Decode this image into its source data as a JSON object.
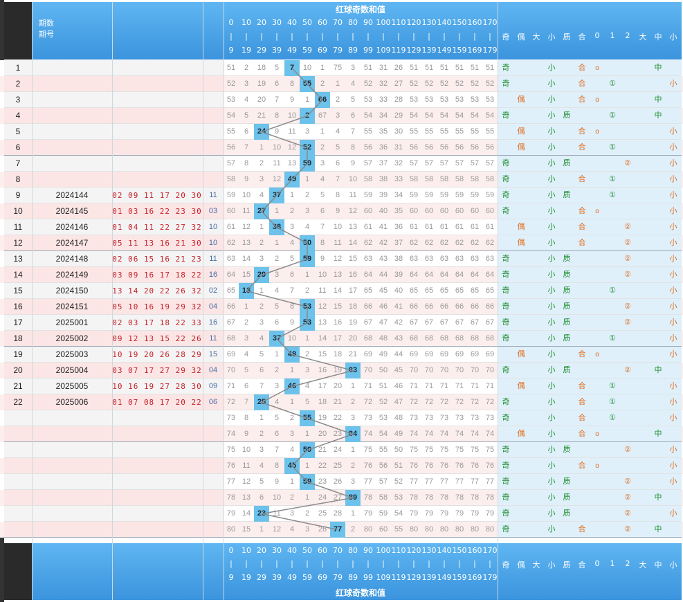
{
  "header": {
    "period_label": "期数",
    "issue_label": "期号",
    "section_title": "红球奇数和值",
    "range_tops": [
      "0",
      "10",
      "20",
      "30",
      "40",
      "50",
      "60",
      "70",
      "80",
      "90",
      "100",
      "110",
      "120",
      "130",
      "140",
      "150",
      "160",
      "170"
    ],
    "range_bottoms": [
      "9",
      "19",
      "29",
      "39",
      "49",
      "59",
      "69",
      "79",
      "89",
      "99",
      "109",
      "119",
      "129",
      "139",
      "149",
      "159",
      "169",
      "179"
    ],
    "range_sep": "|",
    "stat_labels": [
      "奇",
      "偶",
      "大",
      "小",
      "质",
      "合",
      "0",
      "1",
      "2",
      "大",
      "中",
      "小"
    ]
  },
  "footer": {
    "section_title": "红球奇数和值"
  },
  "chart_data": {
    "type": "table",
    "hit_columns": [
      4,
      5,
      6,
      5,
      2,
      5,
      5,
      4,
      3,
      2,
      3,
      5,
      5,
      2,
      1,
      5,
      5,
      3,
      4,
      8,
      4,
      2,
      5,
      8,
      5,
      4,
      5,
      8,
      2,
      7
    ],
    "base_columns": [
      [
        51,
        2,
        18,
        5,
        7,
        10,
        1,
        75,
        3,
        51,
        31,
        26,
        51,
        51,
        51,
        51,
        51
      ],
      [
        52,
        3,
        19,
        6,
        8,
        55,
        2,
        1,
        4,
        52,
        32,
        27,
        52,
        52,
        52,
        52,
        52
      ],
      [
        53,
        4,
        20,
        7,
        9,
        1,
        66,
        2,
        5,
        53,
        33,
        28,
        53,
        53,
        53,
        53,
        53
      ],
      [
        54,
        5,
        21,
        8,
        10,
        2,
        67,
        3,
        6,
        54,
        34,
        29,
        54,
        54,
        54,
        54,
        54
      ],
      [
        55,
        6,
        24,
        9,
        11,
        3,
        1,
        4,
        7,
        55,
        35,
        30,
        55,
        55,
        55,
        55,
        55
      ],
      [
        56,
        7,
        1,
        10,
        12,
        52,
        2,
        5,
        8,
        56,
        36,
        31,
        56,
        56,
        56,
        56,
        56
      ],
      [
        57,
        8,
        2,
        11,
        13,
        59,
        3,
        6,
        9,
        57,
        37,
        32,
        57,
        57,
        57,
        57,
        57
      ],
      [
        58,
        9,
        3,
        12,
        49,
        1,
        4,
        7,
        10,
        58,
        38,
        33,
        58,
        58,
        58,
        58,
        58
      ],
      [
        59,
        10,
        4,
        37,
        1,
        2,
        5,
        8,
        11,
        59,
        39,
        34,
        59,
        59,
        59,
        59,
        59
      ],
      [
        60,
        11,
        27,
        1,
        2,
        3,
        6,
        9,
        12,
        60,
        40,
        35,
        60,
        60,
        60,
        60,
        60
      ],
      [
        61,
        12,
        1,
        38,
        3,
        4,
        7,
        10,
        13,
        61,
        41,
        36,
        61,
        61,
        61,
        61,
        61
      ],
      [
        62,
        13,
        2,
        1,
        4,
        50,
        8,
        11,
        14,
        62,
        42,
        37,
        62,
        62,
        62,
        62,
        62
      ],
      [
        63,
        14,
        3,
        2,
        5,
        59,
        9,
        12,
        15,
        63,
        43,
        38,
        63,
        63,
        63,
        63,
        63
      ],
      [
        64,
        15,
        29,
        3,
        6,
        1,
        10,
        13,
        16,
        64,
        44,
        39,
        64,
        64,
        64,
        64,
        64
      ],
      [
        65,
        13,
        1,
        4,
        7,
        2,
        11,
        14,
        17,
        65,
        45,
        40,
        65,
        65,
        65,
        65,
        65
      ],
      [
        66,
        1,
        2,
        5,
        8,
        53,
        12,
        15,
        18,
        66,
        46,
        41,
        66,
        66,
        66,
        66,
        66
      ],
      [
        67,
        2,
        3,
        6,
        9,
        53,
        13,
        16,
        19,
        67,
        47,
        42,
        67,
        67,
        67,
        67,
        67
      ],
      [
        68,
        3,
        4,
        37,
        10,
        1,
        14,
        17,
        20,
        68,
        48,
        43,
        68,
        68,
        68,
        68,
        68
      ],
      [
        69,
        4,
        5,
        1,
        48,
        2,
        15,
        18,
        21,
        69,
        49,
        44,
        69,
        69,
        69,
        69,
        69
      ],
      [
        70,
        5,
        6,
        2,
        1,
        3,
        16,
        19,
        83,
        70,
        50,
        45,
        70,
        70,
        70,
        70,
        70
      ],
      [
        71,
        6,
        7,
        3,
        46,
        4,
        17,
        20,
        1,
        71,
        51,
        46,
        71,
        71,
        71,
        71,
        71
      ],
      [
        72,
        7,
        25,
        4,
        1,
        5,
        18,
        21,
        2,
        72,
        52,
        47,
        72,
        72,
        72,
        72,
        72
      ],
      [
        73,
        8,
        1,
        5,
        2,
        55,
        19,
        22,
        3,
        73,
        53,
        48,
        73,
        73,
        73,
        73,
        73
      ],
      [
        74,
        9,
        2,
        6,
        3,
        1,
        20,
        23,
        84,
        74,
        54,
        49,
        74,
        74,
        74,
        74,
        74
      ],
      [
        75,
        10,
        3,
        7,
        4,
        59,
        21,
        24,
        1,
        75,
        55,
        50,
        75,
        75,
        75,
        75,
        75
      ],
      [
        76,
        11,
        4,
        8,
        45,
        1,
        22,
        25,
        2,
        76,
        56,
        51,
        76,
        76,
        76,
        76,
        76
      ],
      [
        77,
        12,
        5,
        9,
        1,
        59,
        23,
        26,
        3,
        77,
        57,
        52,
        77,
        77,
        77,
        77,
        77
      ],
      [
        78,
        13,
        6,
        10,
        2,
        1,
        24,
        27,
        89,
        78,
        58,
        53,
        78,
        78,
        78,
        78,
        78
      ],
      [
        79,
        14,
        23,
        11,
        3,
        2,
        25,
        28,
        1,
        79,
        59,
        54,
        79,
        79,
        79,
        79,
        79
      ],
      [
        80,
        15,
        1,
        12,
        4,
        3,
        26,
        77,
        2,
        80,
        60,
        55,
        80,
        80,
        80,
        80,
        80
      ]
    ]
  },
  "rows": [
    {
      "idx": "1",
      "issue": "",
      "balls": "",
      "sum": "",
      "odd": "奇",
      "even": "",
      "small": "小",
      "prime": "",
      "comp": "合",
      "r0": "o",
      "r1": "",
      "r2": "",
      "mid": "中",
      "sm": ""
    },
    {
      "idx": "2",
      "issue": "",
      "balls": "",
      "sum": "",
      "odd": "奇",
      "even": "",
      "small": "小",
      "prime": "",
      "comp": "合",
      "r0": "",
      "r1": "①",
      "r2": "",
      "mid": "",
      "sm": "小"
    },
    {
      "idx": "3",
      "issue": "",
      "balls": "",
      "sum": "",
      "odd": "",
      "even": "偶",
      "small": "小",
      "prime": "",
      "comp": "合",
      "r0": "o",
      "r1": "",
      "r2": "",
      "mid": "中",
      "sm": ""
    },
    {
      "idx": "4",
      "issue": "",
      "balls": "",
      "sum": "",
      "odd": "奇",
      "even": "",
      "small": "小",
      "prime": "质",
      "comp": "",
      "r0": "",
      "r1": "①",
      "r2": "",
      "mid": "中",
      "sm": ""
    },
    {
      "idx": "5",
      "issue": "",
      "balls": "",
      "sum": "",
      "odd": "",
      "even": "偶",
      "small": "小",
      "prime": "",
      "comp": "合",
      "r0": "o",
      "r1": "",
      "r2": "",
      "mid": "",
      "sm": "小"
    },
    {
      "idx": "6",
      "issue": "",
      "balls": "",
      "sum": "",
      "odd": "",
      "even": "偶",
      "small": "小",
      "prime": "",
      "comp": "合",
      "r0": "",
      "r1": "①",
      "r2": "",
      "mid": "",
      "sm": "小"
    },
    {
      "idx": "7",
      "issue": "",
      "balls": "",
      "sum": "",
      "odd": "奇",
      "even": "",
      "small": "小",
      "prime": "质",
      "comp": "",
      "r0": "",
      "r1": "",
      "r2": "②",
      "mid": "",
      "sm": "小"
    },
    {
      "idx": "8",
      "issue": "",
      "balls": "",
      "sum": "",
      "odd": "奇",
      "even": "",
      "small": "小",
      "prime": "",
      "comp": "合",
      "r0": "",
      "r1": "①",
      "r2": "",
      "mid": "",
      "sm": "小"
    },
    {
      "idx": "9",
      "issue": "2024144",
      "balls": "02 09 11 17 20 30",
      "sum": "11",
      "odd": "奇",
      "even": "",
      "small": "小",
      "prime": "质",
      "comp": "",
      "r0": "",
      "r1": "①",
      "r2": "",
      "mid": "",
      "sm": "小"
    },
    {
      "idx": "10",
      "issue": "2024145",
      "balls": "01 03 16 22 23 30",
      "sum": "03",
      "odd": "奇",
      "even": "",
      "small": "小",
      "prime": "",
      "comp": "合",
      "r0": "o",
      "r1": "",
      "r2": "",
      "mid": "",
      "sm": "小"
    },
    {
      "idx": "11",
      "issue": "2024146",
      "balls": "01 04 11 22 27 32",
      "sum": "10",
      "odd": "",
      "even": "偶",
      "small": "小",
      "prime": "",
      "comp": "合",
      "r0": "",
      "r1": "",
      "r2": "②",
      "mid": "",
      "sm": "小"
    },
    {
      "idx": "12",
      "issue": "2024147",
      "balls": "05 11 13 16 21 30",
      "sum": "10",
      "odd": "",
      "even": "偶",
      "small": "小",
      "prime": "",
      "comp": "合",
      "r0": "",
      "r1": "",
      "r2": "②",
      "mid": "",
      "sm": "小"
    },
    {
      "idx": "13",
      "issue": "2024148",
      "balls": "02 06 15 16 21 23",
      "sum": "11",
      "odd": "奇",
      "even": "",
      "small": "小",
      "prime": "质",
      "comp": "",
      "r0": "",
      "r1": "",
      "r2": "②",
      "mid": "",
      "sm": "小"
    },
    {
      "idx": "14",
      "issue": "2024149",
      "balls": "03 09 16 17 18 22",
      "sum": "16",
      "odd": "奇",
      "even": "",
      "small": "小",
      "prime": "质",
      "comp": "",
      "r0": "",
      "r1": "",
      "r2": "②",
      "mid": "",
      "sm": "小"
    },
    {
      "idx": "15",
      "issue": "2024150",
      "balls": "13 14 20 22 26 32",
      "sum": "02",
      "odd": "奇",
      "even": "",
      "small": "小",
      "prime": "质",
      "comp": "",
      "r0": "",
      "r1": "①",
      "r2": "",
      "mid": "",
      "sm": "小"
    },
    {
      "idx": "16",
      "issue": "2024151",
      "balls": "05 10 16 19 29 32",
      "sum": "04",
      "odd": "奇",
      "even": "",
      "small": "小",
      "prime": "质",
      "comp": "",
      "r0": "",
      "r1": "",
      "r2": "②",
      "mid": "",
      "sm": "小"
    },
    {
      "idx": "17",
      "issue": "2025001",
      "balls": "02 03 17 18 22 33",
      "sum": "16",
      "odd": "奇",
      "even": "",
      "small": "小",
      "prime": "质",
      "comp": "",
      "r0": "",
      "r1": "",
      "r2": "②",
      "mid": "",
      "sm": "小"
    },
    {
      "idx": "18",
      "issue": "2025002",
      "balls": "09 12 13 15 22 26",
      "sum": "11",
      "odd": "奇",
      "even": "",
      "small": "小",
      "prime": "质",
      "comp": "",
      "r0": "",
      "r1": "①",
      "r2": "",
      "mid": "",
      "sm": "小"
    },
    {
      "idx": "19",
      "issue": "2025003",
      "balls": "10 19 20 26 28 29",
      "sum": "15",
      "odd": "",
      "even": "偶",
      "small": "小",
      "prime": "",
      "comp": "合",
      "r0": "o",
      "r1": "",
      "r2": "",
      "mid": "",
      "sm": "小"
    },
    {
      "idx": "20",
      "issue": "2025004",
      "balls": "03 07 17 27 29 32",
      "sum": "04",
      "odd": "奇",
      "even": "",
      "small": "小",
      "prime": "质",
      "comp": "",
      "r0": "",
      "r1": "",
      "r2": "②",
      "mid": "中",
      "sm": ""
    },
    {
      "idx": "21",
      "issue": "2025005",
      "balls": "10 16 19 27 28 30",
      "sum": "09",
      "odd": "",
      "even": "偶",
      "small": "小",
      "prime": "",
      "comp": "合",
      "r0": "",
      "r1": "①",
      "r2": "",
      "mid": "",
      "sm": "小"
    },
    {
      "idx": "22",
      "issue": "2025006",
      "balls": "01 07 08 17 20 22",
      "sum": "06",
      "odd": "奇",
      "even": "",
      "small": "小",
      "prime": "",
      "comp": "合",
      "r0": "",
      "r1": "①",
      "r2": "",
      "mid": "",
      "sm": "小"
    },
    {
      "idx": "",
      "issue": "",
      "balls": "",
      "sum": "",
      "odd": "奇",
      "even": "",
      "small": "小",
      "prime": "",
      "comp": "合",
      "r0": "",
      "r1": "①",
      "r2": "",
      "mid": "",
      "sm": "小"
    },
    {
      "idx": "",
      "issue": "",
      "balls": "",
      "sum": "",
      "odd": "",
      "even": "偶",
      "small": "小",
      "prime": "",
      "comp": "合",
      "r0": "o",
      "r1": "",
      "r2": "",
      "mid": "中",
      "sm": ""
    },
    {
      "idx": "",
      "issue": "",
      "balls": "",
      "sum": "",
      "odd": "奇",
      "even": "",
      "small": "小",
      "prime": "质",
      "comp": "",
      "r0": "",
      "r1": "",
      "r2": "②",
      "mid": "",
      "sm": "小"
    },
    {
      "idx": "",
      "issue": "",
      "balls": "",
      "sum": "",
      "odd": "奇",
      "even": "",
      "small": "小",
      "prime": "",
      "comp": "合",
      "r0": "o",
      "r1": "",
      "r2": "",
      "mid": "",
      "sm": "小"
    },
    {
      "idx": "",
      "issue": "",
      "balls": "",
      "sum": "",
      "odd": "奇",
      "even": "",
      "small": "小",
      "prime": "质",
      "comp": "",
      "r0": "",
      "r1": "",
      "r2": "②",
      "mid": "",
      "sm": "小"
    },
    {
      "idx": "",
      "issue": "",
      "balls": "",
      "sum": "",
      "odd": "奇",
      "even": "",
      "small": "小",
      "prime": "质",
      "comp": "",
      "r0": "",
      "r1": "",
      "r2": "②",
      "mid": "中",
      "sm": ""
    },
    {
      "idx": "",
      "issue": "",
      "balls": "",
      "sum": "",
      "odd": "奇",
      "even": "",
      "small": "小",
      "prime": "质",
      "comp": "",
      "r0": "",
      "r1": "",
      "r2": "②",
      "mid": "",
      "sm": "小"
    },
    {
      "idx": "",
      "issue": "",
      "balls": "",
      "sum": "",
      "odd": "奇",
      "even": "",
      "small": "小",
      "prime": "",
      "comp": "合",
      "r0": "",
      "r1": "",
      "r2": "②",
      "mid": "中",
      "sm": ""
    }
  ]
}
